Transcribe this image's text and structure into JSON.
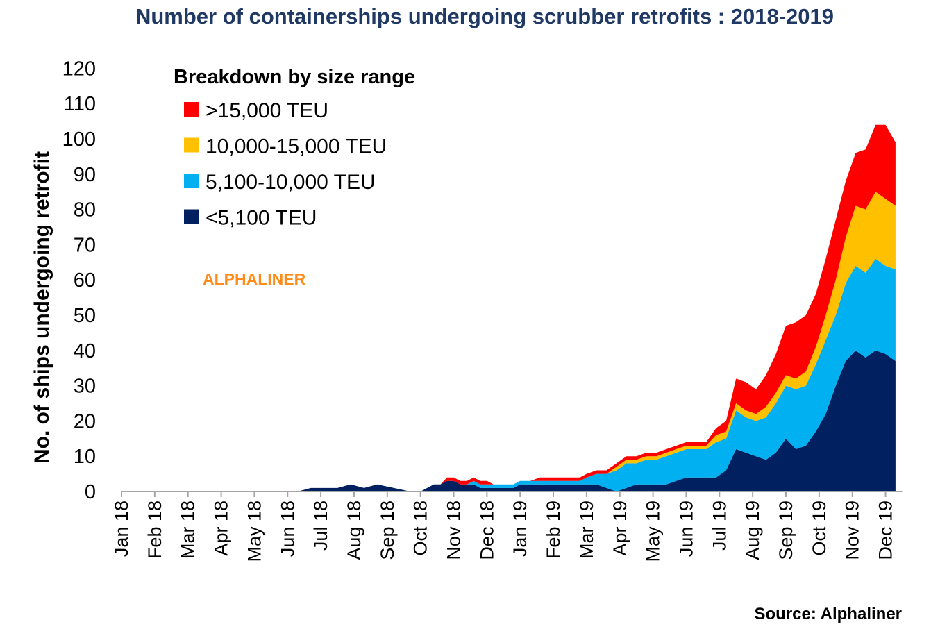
{
  "chart_data": {
    "type": "area",
    "stacked": true,
    "title": "Number of containerships undergoing scrubber retrofits : 2018-2019",
    "ylabel": "No. of ships undergoing retrofit",
    "xlabel": "",
    "ylim": [
      0,
      120
    ],
    "yticks": [
      0,
      10,
      20,
      30,
      40,
      50,
      60,
      70,
      80,
      90,
      100,
      110,
      120
    ],
    "x_ticks": [
      "Jan 18",
      "Feb 18",
      "Mar 18",
      "Apr 18",
      "May 18",
      "Jun 18",
      "Jul 18",
      "Aug 18",
      "Sep 18",
      "Oct 18",
      "Nov 18",
      "Dec 18",
      "Jan 19",
      "Feb 19",
      "Mar 19",
      "Apr 19",
      "May 19",
      "Jun 19",
      "Jul 19",
      "Aug 19",
      "Sep 19",
      "Oct 19",
      "Nov 19",
      "Dec 19"
    ],
    "x_unit": "months since Jan 2018",
    "legend": {
      "title": "Breakdown by size range",
      "placement": "top-left",
      "order": [
        3,
        2,
        1,
        0
      ]
    },
    "grid": false,
    "x": [
      0,
      5.3,
      5.7,
      6.5,
      6.9,
      7.3,
      7.7,
      8.2,
      8.7,
      9.0,
      9.2,
      9.4,
      9.6,
      9.8,
      10.0,
      10.2,
      10.4,
      10.6,
      10.8,
      11.0,
      11.2,
      11.5,
      11.8,
      12.0,
      12.3,
      12.6,
      12.9,
      13.2,
      13.5,
      13.8,
      14.0,
      14.3,
      14.6,
      14.9,
      15.2,
      15.5,
      15.8,
      16.1,
      16.4,
      16.7,
      17.0,
      17.3,
      17.6,
      17.9,
      18.2,
      18.5,
      18.8,
      19.1,
      19.4,
      19.7,
      20.0,
      20.3,
      20.6,
      20.9,
      21.2,
      21.5,
      21.8,
      22.1,
      22.4,
      22.7,
      23.0,
      23.3
    ],
    "series": [
      {
        "name": "<5,100 TEU",
        "color": "#002060",
        "values": [
          0,
          0,
          1,
          1,
          2,
          1,
          2,
          1,
          0,
          0,
          1,
          2,
          2,
          3,
          3,
          2,
          2,
          2,
          1,
          1,
          1,
          1,
          1,
          2,
          2,
          2,
          2,
          2,
          2,
          2,
          2,
          2,
          1,
          0,
          1,
          2,
          2,
          2,
          2,
          3,
          4,
          4,
          4,
          4,
          6,
          12,
          11,
          10,
          9,
          11,
          15,
          12,
          13,
          17,
          22,
          30,
          37,
          40,
          38,
          40,
          39,
          37
        ]
      },
      {
        "name": "5,100-10,000 TEU",
        "color": "#00b0f0",
        "values": [
          0,
          0,
          0,
          0,
          0,
          0,
          0,
          0,
          0,
          0,
          0,
          0,
          0,
          0,
          0,
          0,
          0,
          1,
          1,
          1,
          1,
          1,
          1,
          1,
          1,
          1,
          1,
          1,
          1,
          1,
          2,
          3,
          4,
          6,
          7,
          6,
          7,
          7,
          8,
          8,
          8,
          8,
          8,
          10,
          9,
          11,
          10,
          10,
          12,
          14,
          15,
          17,
          17,
          19,
          21,
          20,
          22,
          24,
          24,
          26,
          25,
          26
        ]
      },
      {
        "name": "10,000-15,000 TEU",
        "color": "#ffc000",
        "values": [
          0,
          0,
          0,
          0,
          0,
          0,
          0,
          0,
          0,
          0,
          0,
          0,
          0,
          0,
          0,
          0,
          0,
          0,
          0,
          0,
          0,
          0,
          0,
          0,
          0,
          0,
          0,
          0,
          0,
          0,
          0,
          0,
          0,
          1,
          1,
          1,
          1,
          1,
          1,
          1,
          1,
          1,
          1,
          2,
          2,
          2,
          2,
          2,
          3,
          3,
          3,
          3,
          4,
          5,
          7,
          10,
          13,
          17,
          18,
          19,
          19,
          18
        ]
      },
      {
        "name": ">15,000 TEU",
        "color": "#ff0000",
        "values": [
          0,
          0,
          0,
          0,
          0,
          0,
          0,
          0,
          0,
          0,
          0,
          0,
          0,
          1,
          1,
          1,
          1,
          1,
          1,
          1,
          0,
          0,
          0,
          0,
          0,
          1,
          1,
          1,
          1,
          1,
          1,
          1,
          1,
          1,
          1,
          1,
          1,
          1,
          1,
          1,
          1,
          1,
          1,
          2,
          3,
          7,
          8,
          7,
          9,
          11,
          14,
          16,
          16,
          15,
          16,
          17,
          16,
          15,
          17,
          19,
          21,
          18
        ]
      }
    ]
  },
  "watermark": "ALPHALINER",
  "source": "Source: Alphaliner"
}
